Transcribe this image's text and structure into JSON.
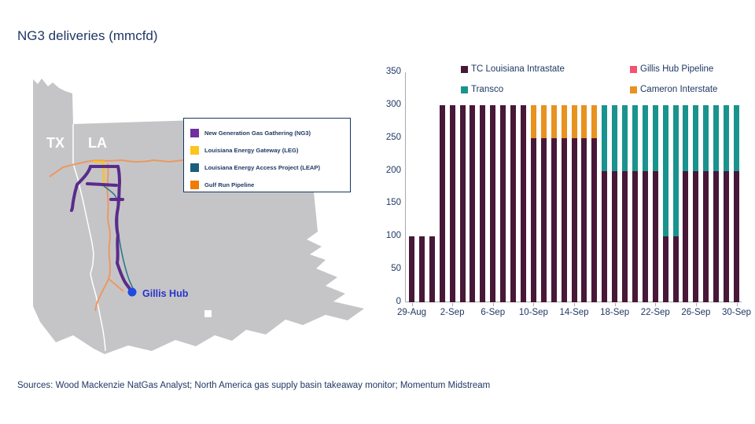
{
  "title": "NG3 deliveries (mmcfd)",
  "sources": "Sources: Wood Mackenzie NatGas Analyst; North America gas supply basin takeaway monitor; Momentum Midstream",
  "colors": {
    "text_navy": "#203864",
    "land_gray": "#C5C5C7",
    "axis_gray": "#A9A9A9",
    "state_line_white": "#FFFFFF"
  },
  "map": {
    "state_labels": {
      "tx": "TX",
      "la": "LA"
    },
    "hub": {
      "label": "Gillis Hub",
      "dot_color": "#2149E0",
      "label_color": "#2633C9"
    },
    "pipelines": {
      "ng3_color": "#5B2B8C",
      "leg_color": "#FFC21E",
      "leap_color": "#2E7A8C",
      "gulf_run_color": "#EC9862"
    },
    "legend": {
      "items": [
        {
          "label": "New Generation Gas Gathering (NG3)",
          "color": "#7030A0"
        },
        {
          "label": "Louisiana Energy Gateway (LEG)",
          "color": "#FFC21E"
        },
        {
          "label": "Louisiana Energy Access Project (LEAP)",
          "color": "#1B5E7B"
        },
        {
          "label": "Gulf Run Pipeline",
          "color": "#F07B05"
        }
      ]
    }
  },
  "chart_data": {
    "type": "bar",
    "stacked": true,
    "title": "NG3 deliveries (mmcfd)",
    "xlabel": "",
    "ylabel": "",
    "ylim": [
      0,
      350
    ],
    "yticks": [
      0,
      50,
      100,
      150,
      200,
      250,
      300,
      350
    ],
    "grid": false,
    "legend_position": "top",
    "x": [
      "29-Aug",
      "30-Aug",
      "31-Aug",
      "1-Sep",
      "2-Sep",
      "3-Sep",
      "4-Sep",
      "5-Sep",
      "6-Sep",
      "7-Sep",
      "8-Sep",
      "9-Sep",
      "10-Sep",
      "11-Sep",
      "12-Sep",
      "13-Sep",
      "14-Sep",
      "15-Sep",
      "16-Sep",
      "17-Sep",
      "18-Sep",
      "19-Sep",
      "20-Sep",
      "21-Sep",
      "22-Sep",
      "23-Sep",
      "24-Sep",
      "25-Sep",
      "26-Sep",
      "27-Sep",
      "28-Sep",
      "29-Sep",
      "30-Sep"
    ],
    "xtick_labels": [
      "29-Aug",
      "2-Sep",
      "6-Sep",
      "10-Sep",
      "14-Sep",
      "18-Sep",
      "22-Sep",
      "26-Sep",
      "30-Sep"
    ],
    "xtick_indices": [
      0,
      4,
      8,
      12,
      16,
      20,
      24,
      28,
      32
    ],
    "series": [
      {
        "name": "TC Louisiana Intrastate",
        "color": "#481838",
        "values": [
          100,
          100,
          100,
          300,
          300,
          300,
          300,
          300,
          300,
          300,
          300,
          300,
          250,
          250,
          250,
          250,
          250,
          250,
          250,
          200,
          200,
          200,
          200,
          200,
          200,
          100,
          100,
          200,
          200,
          200,
          200,
          200,
          200
        ]
      },
      {
        "name": "Transco",
        "color": "#1A938E",
        "values": [
          0,
          0,
          0,
          0,
          0,
          0,
          0,
          0,
          0,
          0,
          0,
          0,
          0,
          0,
          0,
          0,
          0,
          0,
          0,
          100,
          100,
          100,
          100,
          100,
          100,
          200,
          200,
          100,
          100,
          100,
          100,
          100,
          100
        ]
      },
      {
        "name": "Cameron Interstate",
        "color": "#E8921F",
        "values": [
          0,
          0,
          0,
          0,
          0,
          0,
          0,
          0,
          0,
          0,
          0,
          0,
          50,
          50,
          50,
          50,
          50,
          50,
          50,
          0,
          0,
          0,
          0,
          0,
          0,
          0,
          0,
          0,
          0,
          0,
          0,
          0,
          0
        ]
      },
      {
        "name": "Gillis Hub Pipeline",
        "color": "#F4526E",
        "values": [
          0,
          0,
          0,
          0,
          0,
          0,
          0,
          0,
          0,
          0,
          0,
          0,
          0,
          0,
          0,
          0,
          0,
          0,
          0,
          0,
          0,
          0,
          0,
          0,
          0,
          0,
          0,
          0,
          0,
          0,
          0,
          0,
          0
        ]
      }
    ],
    "legend_display_order": [
      "TC Louisiana Intrastate",
      "Gillis Hub Pipeline",
      "Transco",
      "Cameron Interstate"
    ]
  }
}
